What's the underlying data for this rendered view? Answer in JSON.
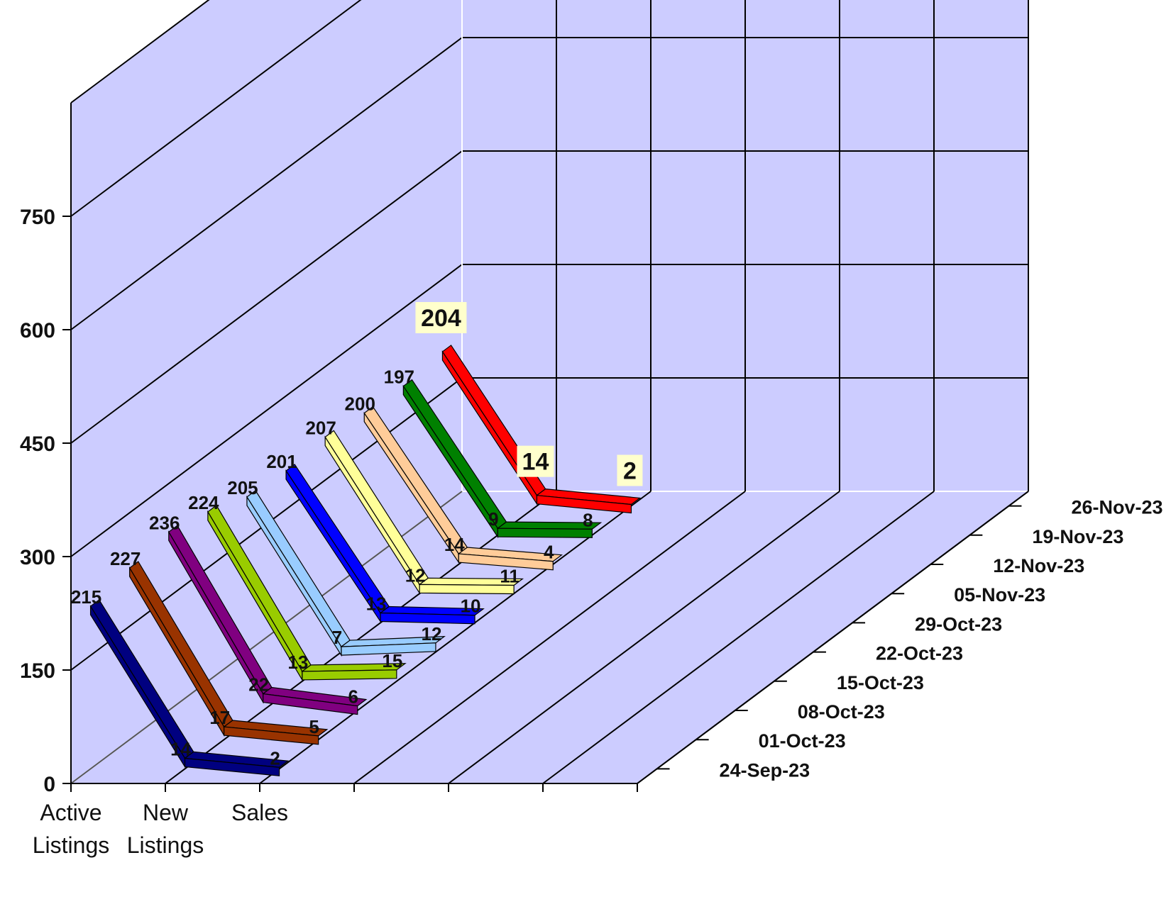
{
  "chart_data": {
    "type": "line",
    "categories": [
      "Active Listings",
      "New Listings",
      "Sales"
    ],
    "category_lines": [
      [
        "Active",
        "Listings"
      ],
      [
        "New",
        "Listings"
      ],
      [
        "Sales"
      ]
    ],
    "y_ticks": [
      "0",
      "150",
      "300",
      "450",
      "600",
      "750"
    ],
    "ylim": [
      0,
      900
    ],
    "series": [
      {
        "name": "24-Sep-23",
        "color": "#000080",
        "values": [
          215,
          14,
          2
        ]
      },
      {
        "name": "01-Oct-23",
        "color": "#993300",
        "values": [
          227,
          17,
          5
        ]
      },
      {
        "name": "08-Oct-23",
        "color": "#800080",
        "values": [
          236,
          22,
          6
        ]
      },
      {
        "name": "15-Oct-23",
        "color": "#99CC00",
        "values": [
          224,
          13,
          15
        ]
      },
      {
        "name": "22-Oct-23",
        "color": "#99CCFF",
        "values": [
          205,
          7,
          12
        ]
      },
      {
        "name": "29-Oct-23",
        "color": "#0000FF",
        "values": [
          201,
          13,
          10
        ]
      },
      {
        "name": "05-Nov-23",
        "color": "#FFFF99",
        "values": [
          207,
          12,
          11
        ]
      },
      {
        "name": "12-Nov-23",
        "color": "#FFCC99",
        "values": [
          200,
          14,
          4
        ]
      },
      {
        "name": "19-Nov-23",
        "color": "#008000",
        "values": [
          197,
          9,
          8
        ]
      },
      {
        "name": "26-Nov-23",
        "color": "#FF0000",
        "values": [
          204,
          14,
          2
        ]
      }
    ],
    "grid": true,
    "colors": {
      "wall": "#CCCCFF",
      "grid": "#000000"
    }
  }
}
